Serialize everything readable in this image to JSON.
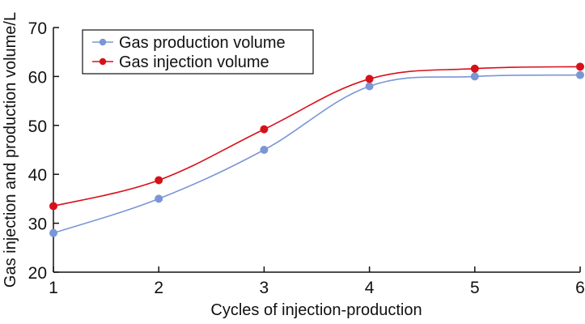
{
  "chart_data": {
    "type": "line",
    "title": "",
    "xlabel": "Cycles of injection-production",
    "ylabel": "Gas injection and production volume/L",
    "x": [
      1,
      2,
      3,
      4,
      5,
      6
    ],
    "xlim": [
      1,
      6
    ],
    "ylim": [
      20,
      70
    ],
    "xticks": [
      "1",
      "2",
      "3",
      "4",
      "5",
      "6"
    ],
    "yticks": [
      "20",
      "30",
      "40",
      "50",
      "60",
      "70"
    ],
    "grid": false,
    "legend_position": "top-left",
    "smooth": true,
    "series": [
      {
        "name": "Gas production volume",
        "color": "#7b96d6",
        "values": [
          28,
          35,
          45,
          58,
          60,
          60.3
        ]
      },
      {
        "name": "Gas injection volume",
        "color": "#d7111b",
        "values": [
          33.5,
          38.8,
          49.2,
          59.5,
          61.6,
          62
        ]
      }
    ]
  }
}
